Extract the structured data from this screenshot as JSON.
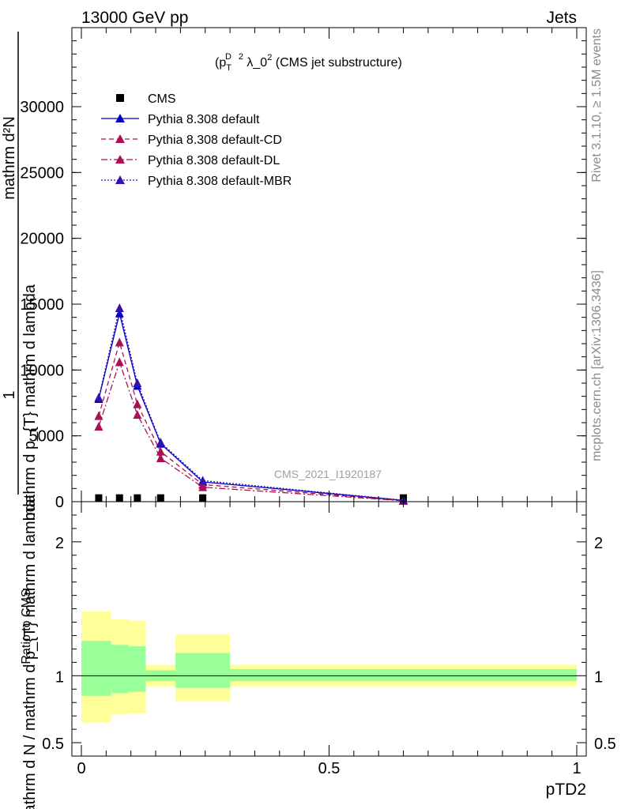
{
  "header": {
    "left": "13000 GeV pp",
    "right": "Jets"
  },
  "side_text": {
    "rivet": "Rivet 3.1.10, ≥ 1.5M events",
    "source": "mcplots.cern.ch [arXiv:1306.3436]"
  },
  "watermark": "CMS_2021_I1920187",
  "chart_data": {
    "type": "line",
    "title": "(p_T^D)^2 λ_0^2 (CMS jet substructure)",
    "title_parts": {
      "base": "(p",
      "sub": "T",
      "sup1": "D",
      "sup2": "2",
      "rest": " λ_0",
      "sup3": "2",
      "tail": " (CMS jet substructure)"
    },
    "xlabel": "pTD2",
    "ylabel_main": {
      "numerator": "1",
      "denominator": "mathrm d N / mathrm d p_{T} mathrm d lambda",
      "overlay_numerator": "mathrm d²N",
      "overlay_denominator": "mathrm d p_{T} mathrm d lambda"
    },
    "ylabel_ratio": "Ratio to CMS",
    "xlim": [
      0,
      1
    ],
    "ylim_main": [
      0,
      36000
    ],
    "ylim_ratio": [
      0.4,
      2.3
    ],
    "x_ticks": [
      "0",
      "0.5",
      "1"
    ],
    "y_ticks_main": [
      "0",
      "5000",
      "10000",
      "15000",
      "20000",
      "25000",
      "30000"
    ],
    "y_ticks_ratio": [
      "0.5",
      "1",
      "2"
    ],
    "x": [
      0.035,
      0.077,
      0.113,
      0.16,
      0.245,
      0.65
    ],
    "bin_edges": [
      0.0,
      0.06,
      0.095,
      0.13,
      0.19,
      0.3,
      1.0
    ],
    "series": [
      {
        "name": "CMS",
        "values": [
          20,
          20,
          20,
          20,
          20,
          20
        ],
        "color": "#000000",
        "marker": "square",
        "line": "none"
      },
      {
        "name": "Pythia 8.308 default",
        "values": [
          7800,
          14300,
          8800,
          4400,
          1500,
          100
        ],
        "color": "#0000cc",
        "marker": "triangle",
        "line": "solid"
      },
      {
        "name": "Pythia 8.308 default-CD",
        "values": [
          6500,
          12100,
          7400,
          3800,
          1300,
          80
        ],
        "color": "#aa1155",
        "marker": "triangle",
        "line": "dashed"
      },
      {
        "name": "Pythia 8.308 default-DL",
        "values": [
          5700,
          10600,
          6600,
          3300,
          1100,
          70
        ],
        "color": "#aa1155",
        "marker": "triangle",
        "line": "dashdot"
      },
      {
        "name": "Pythia 8.308 default-MBR",
        "values": [
          7900,
          14700,
          9000,
          4500,
          1600,
          110
        ],
        "color": "#3311aa",
        "marker": "triangle",
        "line": "dotted"
      }
    ],
    "ratio_bands": {
      "yellow": [
        [
          0.65,
          1.48
        ],
        [
          0.71,
          1.42
        ],
        [
          0.72,
          1.41
        ],
        [
          0.92,
          1.08
        ],
        [
          0.81,
          1.31
        ],
        [
          0.92,
          1.08
        ]
      ],
      "green": [
        [
          0.85,
          1.26
        ],
        [
          0.87,
          1.23
        ],
        [
          0.88,
          1.22
        ],
        [
          0.96,
          1.04
        ],
        [
          0.91,
          1.17
        ],
        [
          0.96,
          1.05
        ]
      ],
      "yellow_color": "#ffff99",
      "green_color": "#99ff99"
    }
  }
}
